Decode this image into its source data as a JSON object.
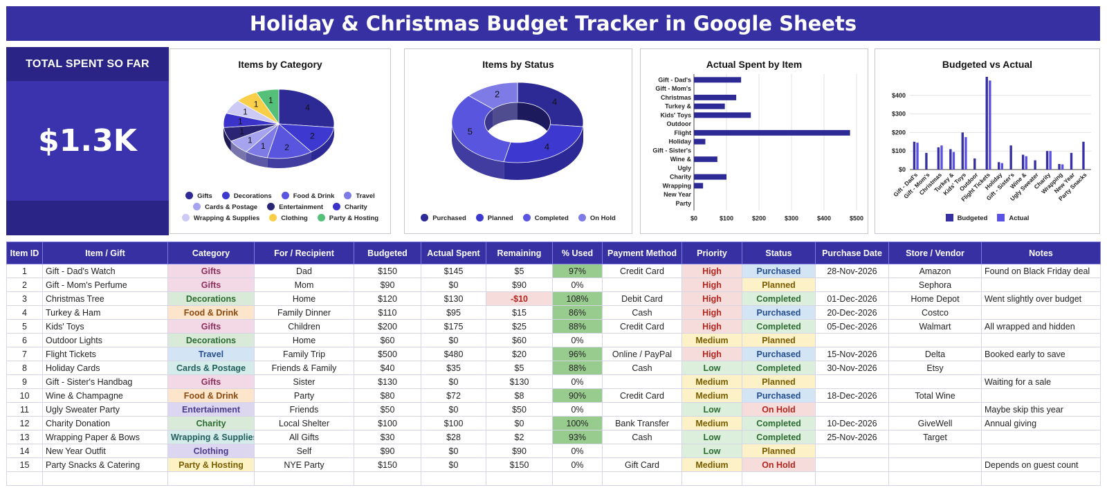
{
  "title": "Holiday & Christmas Budget Tracker in Google Sheets",
  "kpi": {
    "label": "TOTAL SPENT SO FAR",
    "value": "$1.3K"
  },
  "colors": {
    "header_bg": "#3730a3",
    "cat": {
      "Gifts": "#f3d9e6",
      "Decorations": "#d9ead8",
      "Food & Drink": "#fde5cc",
      "Travel": "#d3e4f5",
      "Cards & Postage": "#d5ecea",
      "Entertainment": "#dcd6f0",
      "Charity": "#d9ead8",
      "Wrapping & Supplies": "#d5ecea",
      "Clothing": "#dcd6f0",
      "Party & Hosting": "#fdf2c4"
    },
    "cat_text": {
      "Gifts": "#8e2d5e",
      "Decorations": "#2b6b31",
      "Food & Drink": "#8a4a10",
      "Travel": "#234f8f",
      "Cards & Postage": "#1f5e5b",
      "Entertainment": "#4b3a8a",
      "Charity": "#2b6b31",
      "Wrapping & Supplies": "#1f5e5b",
      "Clothing": "#4b3a8a",
      "Party & Hosting": "#7a5d00"
    },
    "priority": {
      "High": [
        "#f7dcdc",
        "#b3261e"
      ],
      "Medium": [
        "#fdf1c7",
        "#7a5d00"
      ],
      "Low": [
        "#dcefdc",
        "#2b6b31"
      ]
    },
    "status": {
      "Purchased": [
        "#d3e4f5",
        "#234f8f"
      ],
      "Planned": [
        "#fdf1c7",
        "#7a5d00"
      ],
      "Completed": [
        "#dcefdc",
        "#2b6b31"
      ],
      "On Hold": [
        "#f7dcdc",
        "#b3261e"
      ]
    },
    "pct_fill": "#98cc8e",
    "neg_fill": "#f7dcdc",
    "neg_text": "#b3261e"
  },
  "charts": {
    "category": {
      "title": "Items by Category",
      "chart_data": {
        "type": "pie",
        "labels": [
          "Gifts",
          "Decorations",
          "Food & Drink",
          "Travel",
          "Cards & Postage",
          "Entertainment",
          "Charity",
          "Wrapping & Supplies",
          "Clothing",
          "Party & Hosting"
        ],
        "values": [
          4,
          2,
          2,
          1,
          1,
          1,
          1,
          1,
          1,
          1
        ],
        "colors": [
          "#2d2a96",
          "#3d38cf",
          "#5a55de",
          "#7f7be6",
          "#a6a3ef",
          "#2a2474",
          "#3b33c9",
          "#cdcbf6",
          "#f9cf4a",
          "#55c07a"
        ],
        "legend_position": "bottom"
      }
    },
    "status": {
      "title": "Items by Status",
      "chart_data": {
        "type": "pie",
        "labels": [
          "Purchased",
          "Planned",
          "Completed",
          "On Hold"
        ],
        "values": [
          4,
          4,
          5,
          2
        ],
        "colors": [
          "#2d2a96",
          "#3d38cf",
          "#5a55de",
          "#7f7be6"
        ],
        "legend_position": "bottom"
      }
    },
    "actual": {
      "title": "Actual Spent by Item",
      "chart_data": {
        "type": "bar",
        "orientation": "horizontal",
        "categories": [
          "Gift - Dad's",
          "Gift - Mom's",
          "Christmas",
          "Turkey &",
          "Kids' Toys",
          "Outdoor",
          "Flight",
          "Holiday",
          "Gift - Sister's",
          "Wine &",
          "Ugly",
          "Charity",
          "Wrapping",
          "New Year",
          "Party"
        ],
        "values": [
          145,
          0,
          130,
          95,
          175,
          0,
          480,
          35,
          0,
          72,
          0,
          100,
          28,
          0,
          0
        ],
        "xlim": [
          0,
          500
        ],
        "xticks": [
          "$0",
          "$100",
          "$200",
          "$300",
          "$400",
          "$500"
        ],
        "color": "#2d2a96",
        "grid": true
      }
    },
    "budget": {
      "title": "Budgeted vs Actual",
      "chart_data": {
        "type": "bar",
        "categories": [
          "Gift - Dad's",
          "Gift - Mom's",
          "Christmas",
          "Turkey &",
          "Kids' Toys",
          "Outdoor",
          "Flight Tickets",
          "Holiday",
          "Gift - Sister's",
          "Wine &",
          "Ugly Sweater",
          "Charity",
          "Wrapping",
          "New Year",
          "Party Snacks"
        ],
        "series": [
          {
            "name": "Budgeted",
            "color": "#3730a3",
            "values": [
              150,
              90,
              120,
              110,
              200,
              60,
              500,
              40,
              130,
              80,
              50,
              100,
              30,
              90,
              150
            ]
          },
          {
            "name": "Actual",
            "color": "#5b52e3",
            "values": [
              145,
              0,
              130,
              95,
              175,
              0,
              480,
              35,
              0,
              72,
              0,
              100,
              28,
              0,
              0
            ]
          }
        ],
        "ylim": [
          0,
          500
        ],
        "yticks": [
          "$0",
          "$100",
          "$200",
          "$300",
          "$400"
        ],
        "legend_position": "bottom",
        "grid": true
      }
    }
  },
  "table": {
    "columns": [
      "Item ID",
      "Item / Gift",
      "Category",
      "For / Recipient",
      "Budgeted",
      "Actual Spent",
      "Remaining",
      "% Used",
      "Payment Method",
      "Priority",
      "Status",
      "Purchase Date",
      "Store / Vendor",
      "Notes"
    ],
    "rows": [
      [
        "1",
        "Gift - Dad's Watch",
        "Gifts",
        "Dad",
        "$150",
        "$145",
        "$5",
        "97%",
        "Credit Card",
        "High",
        "Purchased",
        "28-Nov-2026",
        "Amazon",
        "Found on Black Friday deal"
      ],
      [
        "2",
        "Gift - Mom's Perfume",
        "Gifts",
        "Mom",
        "$90",
        "$0",
        "$90",
        "0%",
        "",
        "High",
        "Planned",
        "",
        "Sephora",
        ""
      ],
      [
        "3",
        "Christmas Tree",
        "Decorations",
        "Home",
        "$120",
        "$130",
        "-$10",
        "108%",
        "Debit Card",
        "High",
        "Completed",
        "01-Dec-2026",
        "Home Depot",
        "Went slightly over budget"
      ],
      [
        "4",
        "Turkey & Ham",
        "Food & Drink",
        "Family Dinner",
        "$110",
        "$95",
        "$15",
        "86%",
        "Cash",
        "High",
        "Purchased",
        "20-Dec-2026",
        "Costco",
        ""
      ],
      [
        "5",
        "Kids' Toys",
        "Gifts",
        "Children",
        "$200",
        "$175",
        "$25",
        "88%",
        "Credit Card",
        "High",
        "Completed",
        "05-Dec-2026",
        "Walmart",
        "All wrapped and hidden"
      ],
      [
        "6",
        "Outdoor Lights",
        "Decorations",
        "Home",
        "$60",
        "$0",
        "$60",
        "0%",
        "",
        "Medium",
        "Planned",
        "",
        "",
        ""
      ],
      [
        "7",
        "Flight Tickets",
        "Travel",
        "Family Trip",
        "$500",
        "$480",
        "$20",
        "96%",
        "Online / PayPal",
        "High",
        "Purchased",
        "15-Nov-2026",
        "Delta",
        "Booked early to save"
      ],
      [
        "8",
        "Holiday Cards",
        "Cards & Postage",
        "Friends & Family",
        "$40",
        "$35",
        "$5",
        "88%",
        "Cash",
        "Low",
        "Completed",
        "30-Nov-2026",
        "Etsy",
        ""
      ],
      [
        "9",
        "Gift - Sister's Handbag",
        "Gifts",
        "Sister",
        "$130",
        "$0",
        "$130",
        "0%",
        "",
        "Medium",
        "Planned",
        "",
        "",
        "Waiting for a sale"
      ],
      [
        "10",
        "Wine & Champagne",
        "Food & Drink",
        "Party",
        "$80",
        "$72",
        "$8",
        "90%",
        "Credit Card",
        "Medium",
        "Purchased",
        "18-Dec-2026",
        "Total Wine",
        ""
      ],
      [
        "11",
        "Ugly Sweater Party",
        "Entertainment",
        "Friends",
        "$50",
        "$0",
        "$50",
        "0%",
        "",
        "Low",
        "On Hold",
        "",
        "",
        "Maybe skip this year"
      ],
      [
        "12",
        "Charity Donation",
        "Charity",
        "Local Shelter",
        "$100",
        "$100",
        "$0",
        "100%",
        "Bank Transfer",
        "Medium",
        "Completed",
        "10-Dec-2026",
        "GiveWell",
        "Annual giving"
      ],
      [
        "13",
        "Wrapping Paper & Bows",
        "Wrapping & Supplies",
        "All Gifts",
        "$30",
        "$28",
        "$2",
        "93%",
        "Cash",
        "Low",
        "Completed",
        "25-Nov-2026",
        "Target",
        ""
      ],
      [
        "14",
        "New Year Outfit",
        "Clothing",
        "Self",
        "$90",
        "$0",
        "$90",
        "0%",
        "",
        "Low",
        "Planned",
        "",
        "",
        ""
      ],
      [
        "15",
        "Party Snacks & Catering",
        "Party & Hosting",
        "NYE Party",
        "$150",
        "$0",
        "$150",
        "0%",
        "Gift Card",
        "Medium",
        "On Hold",
        "",
        "",
        "Depends on guest count"
      ]
    ]
  }
}
